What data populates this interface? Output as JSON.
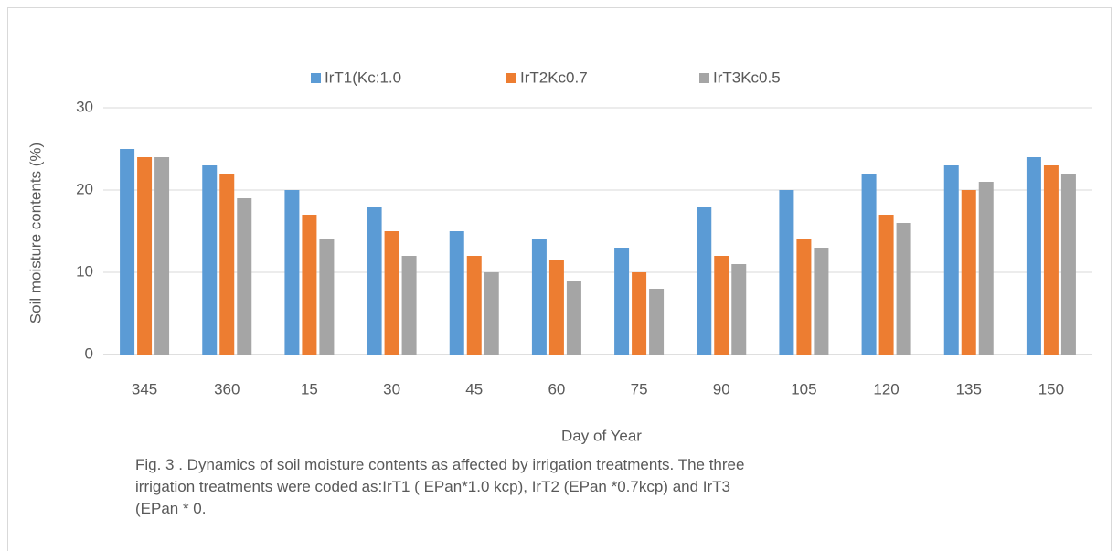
{
  "chart_data": {
    "type": "bar",
    "y_label": "Soil moisture contents (%)",
    "x_label": "Day of Year",
    "caption": "Fig. 3 . Dynamics of soil moisture contents as affected by irrigation treatments. The three irrigation treatments were coded as:IrT1 ( EPan*1.0 kcp), IrT2 (EPan *0.7kcp) and IrT3 (EPan * 0.",
    "categories": [
      "345",
      "360",
      "15",
      "30",
      "45",
      "60",
      "75",
      "90",
      "105",
      "120",
      "135",
      "150"
    ],
    "series": [
      {
        "name": "IrT1(Kc:1.0",
        "color": "#5b9bd5",
        "values": [
          25,
          23,
          20,
          18,
          15,
          14,
          13,
          18,
          20,
          22,
          23,
          24
        ]
      },
      {
        "name": "IrT2Kc0.7",
        "color": "#ed7d31",
        "values": [
          24,
          22,
          17,
          15,
          12,
          11.5,
          10,
          12,
          14,
          17,
          20,
          23
        ]
      },
      {
        "name": "IrT3Kc0.5",
        "color": "#a5a5a5",
        "values": [
          24,
          19,
          14,
          12,
          10,
          9,
          8,
          11,
          13,
          16,
          21,
          22
        ]
      }
    ],
    "ylim": [
      0,
      30
    ],
    "yticks": [
      0,
      10,
      20,
      30
    ],
    "grid": true,
    "legend": "top"
  }
}
